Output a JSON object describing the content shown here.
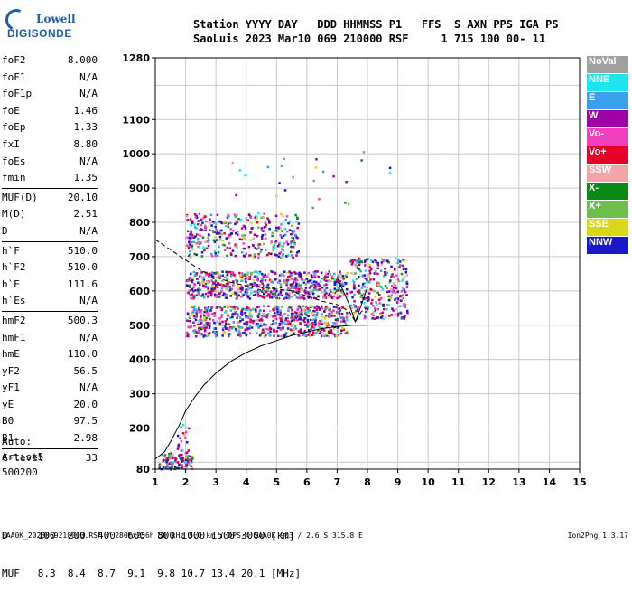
{
  "logo": {
    "line1": "Lowell",
    "line2": "DIGISONDE"
  },
  "header": {
    "row1": "Station YYYY DAY   DDD HHMMSS P1   FFS  S AXN PPS IGA PS",
    "row2": "SaoLuis 2023 Mar10 069 210000 RSF     1 715 100 00- 11"
  },
  "params_group1": [
    {
      "name": "foF2",
      "value": "8.000"
    },
    {
      "name": "foF1",
      "value": "N/A"
    },
    {
      "name": "foF1p",
      "value": "N/A"
    },
    {
      "name": "foE",
      "value": "1.46"
    },
    {
      "name": "foEp",
      "value": "1.33"
    },
    {
      "name": "fxI",
      "value": "8.80"
    },
    {
      "name": "foEs",
      "value": "N/A"
    },
    {
      "name": "fmin",
      "value": "1.35"
    }
  ],
  "params_group2": [
    {
      "name": "MUF(D)",
      "value": "20.10"
    },
    {
      "name": "M(D)",
      "value": "2.51"
    },
    {
      "name": "D",
      "value": "N/A"
    }
  ],
  "params_group3": [
    {
      "name": "h`F",
      "value": "510.0"
    },
    {
      "name": "h`F2",
      "value": "510.0"
    },
    {
      "name": "h`E",
      "value": "111.6"
    },
    {
      "name": "h`Es",
      "value": "N/A"
    }
  ],
  "params_group4": [
    {
      "name": "hmF2",
      "value": "500.3"
    },
    {
      "name": "hmF1",
      "value": "N/A"
    },
    {
      "name": "hmE",
      "value": "110.0"
    },
    {
      "name": "yF2",
      "value": "56.5"
    },
    {
      "name": "yF1",
      "value": "N/A"
    },
    {
      "name": "yE",
      "value": "20.0"
    },
    {
      "name": "B0",
      "value": "97.5"
    },
    {
      "name": "B1",
      "value": "2.98"
    }
  ],
  "params_group5": [
    {
      "name": "C-level",
      "value": "33"
    }
  ],
  "auto": {
    "line1": "Auto:",
    "line2": "Artist5",
    "line3": "500200"
  },
  "legend": [
    {
      "label": "NoVal",
      "color": "#a0a0a0"
    },
    {
      "label": "NNE",
      "color": "#19e6f0"
    },
    {
      "label": "E",
      "color": "#3aa0ee"
    },
    {
      "label": "W",
      "color": "#a000a8"
    },
    {
      "label": "Vo-",
      "color": "#f040c0"
    },
    {
      "label": "Vo+",
      "color": "#e60028"
    },
    {
      "label": "SSW",
      "color": "#f4a4a8"
    },
    {
      "label": "X-",
      "color": "#0a8a14"
    },
    {
      "label": "X+",
      "color": "#6ec04e"
    },
    {
      "label": "SSE",
      "color": "#d8d81a"
    },
    {
      "label": "NNW",
      "color": "#1818c8"
    }
  ],
  "bottom": {
    "row1": "D     100  200  400  600  800 1000 1500 3000 [km]",
    "row2": "MUF   8.3  8.4  8.7  9.1  9.8 10.7 13.4 20.1 [MHz]"
  },
  "footer": {
    "left": "SAA0K_2023069210000.RSF / 280fx256h 50 kHz 5.0 km / DPS-4 SAA0K 903 / 2.6 S 315.8 E",
    "right": "Ion2Png 1.3.17"
  },
  "chart_data": {
    "type": "scatter",
    "x_ticks": [
      1,
      2,
      3,
      4,
      5,
      6,
      7,
      8,
      9,
      10,
      11,
      12,
      13,
      14,
      15
    ],
    "y_ticks": [
      80,
      200,
      300,
      400,
      500,
      600,
      700,
      800,
      900,
      1000,
      1100,
      1280
    ],
    "xlim": [
      1,
      15
    ],
    "ylim": [
      80,
      1280
    ],
    "grid": true,
    "profile": {
      "x": [
        1.0,
        1.3,
        1.5,
        1.8,
        2.0,
        2.3,
        2.6,
        3.0,
        3.5,
        4.0,
        4.5,
        5.0,
        5.5,
        6.0,
        6.5,
        7.0,
        7.5,
        8.0,
        8.0
      ],
      "y": [
        110,
        130,
        160,
        210,
        250,
        290,
        325,
        360,
        395,
        420,
        440,
        455,
        470,
        480,
        490,
        496,
        500,
        500,
        500
      ]
    },
    "mode_line": {
      "x": [
        1.0,
        1.5,
        2.0,
        2.5,
        3.0,
        3.5,
        4.0,
        4.5,
        5.0,
        5.5,
        6.0,
        6.5,
        7.0,
        7.4,
        7.6,
        7.8,
        8.0
      ],
      "y": [
        750,
        720,
        690,
        660,
        640,
        625,
        615,
        610,
        605,
        600,
        585,
        570,
        560,
        540,
        510,
        540,
        550
      ]
    },
    "right_line": {
      "x": [
        7.0,
        7.2,
        7.4,
        7.6,
        7.8,
        8.0
      ],
      "y": [
        640,
        600,
        560,
        510,
        560,
        610
      ]
    },
    "echo_clusters": [
      {
        "x": [
          1.1,
          2.2
        ],
        "y": [
          82,
          130
        ],
        "n": 120
      },
      {
        "x": [
          1.7,
          2.1
        ],
        "y": [
          130,
          220
        ],
        "n": 20
      },
      {
        "x": [
          2.0,
          7.3
        ],
        "y": [
          470,
          560
        ],
        "n": 700
      },
      {
        "x": [
          2.0,
          7.3
        ],
        "y": [
          580,
          660
        ],
        "n": 650
      },
      {
        "x": [
          2.0,
          5.7
        ],
        "y": [
          700,
          830
        ],
        "n": 350
      },
      {
        "x": [
          7.4,
          9.3
        ],
        "y": [
          520,
          700
        ],
        "n": 300
      },
      {
        "x": [
          3.0,
          8.8
        ],
        "y": [
          840,
          1010
        ],
        "n": 25
      }
    ]
  }
}
